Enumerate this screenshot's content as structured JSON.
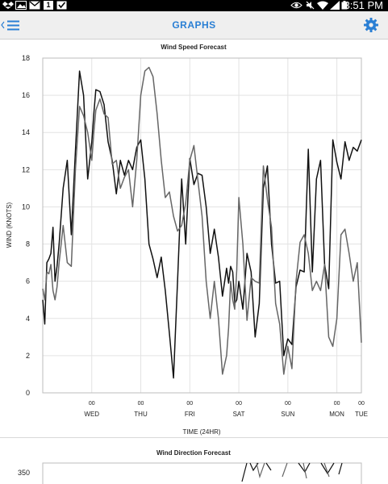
{
  "status_bar": {
    "time": "3:51 PM",
    "icons": [
      "dropbox-icon",
      "gallery-icon",
      "gmail-icon",
      "calendar-icon",
      "checkbox-icon",
      "eye-icon",
      "silent-icon",
      "wifi-icon",
      "signal-icon",
      "battery-icon"
    ],
    "calendar_day": "1"
  },
  "app_bar": {
    "title": "GRAPHS",
    "accent": "#2a7fd4"
  },
  "chart_data": [
    {
      "type": "line",
      "title": "Wind Speed Forecast",
      "ylabel": "WIND (KNOTS)",
      "xlabel": "TIME (24HR)",
      "ylim": [
        0,
        18
      ],
      "yticks": [
        0,
        2,
        4,
        6,
        8,
        10,
        12,
        14,
        16,
        18
      ],
      "xlim": [
        0,
        156
      ],
      "xticks": [
        {
          "x": 24,
          "label": "00",
          "day": "WED"
        },
        {
          "x": 48,
          "label": "00",
          "day": "THU"
        },
        {
          "x": 72,
          "label": "00",
          "day": "FRI"
        },
        {
          "x": 96,
          "label": "00",
          "day": "SAT"
        },
        {
          "x": 120,
          "label": "00",
          "day": "SUN"
        },
        {
          "x": 144,
          "label": "00",
          "day": "MON"
        },
        {
          "x": 168,
          "label": "00",
          "day": "TUE"
        }
      ],
      "grid": true,
      "series": [
        {
          "color": "#111111",
          "x": [
            0,
            1,
            2,
            3,
            4,
            5,
            6,
            7,
            8,
            10,
            12,
            14,
            16,
            18,
            20,
            22,
            24,
            25,
            26,
            28,
            30,
            32,
            34,
            36,
            38,
            40,
            42,
            44,
            46,
            48,
            50,
            52,
            54,
            56,
            58,
            60,
            62,
            64,
            66,
            68,
            70,
            72,
            74,
            76,
            78,
            80,
            82,
            84,
            86,
            88,
            90,
            91,
            92,
            93,
            94,
            95,
            96,
            98,
            100,
            102,
            104,
            106,
            108,
            110,
            112,
            114,
            116,
            118,
            120,
            122,
            124,
            126,
            128,
            130,
            132,
            134,
            136,
            138,
            140,
            142,
            144,
            146,
            148,
            150,
            152,
            154,
            156
          ],
          "y": [
            5,
            3.7,
            7,
            7.2,
            7.5,
            8.9,
            6,
            6.8,
            8,
            11,
            12.5,
            8.5,
            13,
            17.3,
            16,
            11.5,
            13.5,
            15,
            16.3,
            16.2,
            15.5,
            13.5,
            12.5,
            10.7,
            12.5,
            11.7,
            12.5,
            12,
            13.2,
            13.6,
            11.5,
            8,
            7.2,
            6.2,
            7.3,
            5.5,
            3.2,
            0.8,
            6,
            11.5,
            8,
            12.6,
            11.2,
            11.8,
            11.7,
            10,
            7.5,
            8.8,
            7.3,
            5.2,
            6.7,
            5.9,
            6.8,
            6.5,
            4.8,
            5,
            6,
            4.5,
            7.5,
            6.5,
            3,
            4.8,
            11,
            12.2,
            8,
            5.9,
            6,
            2,
            2.9,
            2.6,
            5.7,
            6.6,
            6.5,
            13.1,
            6.5,
            11.5,
            12.5,
            6.9,
            5.6,
            13.6,
            12.4,
            11.5,
            13.5,
            12.5,
            13.2,
            13,
            13.6
          ]
        },
        {
          "color": "#666666",
          "x": [
            0,
            1,
            2,
            3,
            4,
            5,
            6,
            7,
            8,
            10,
            12,
            14,
            16,
            18,
            20,
            22,
            24,
            25,
            26,
            28,
            30,
            32,
            34,
            36,
            38,
            40,
            42,
            44,
            46,
            48,
            50,
            52,
            54,
            56,
            58,
            60,
            62,
            64,
            66,
            68,
            70,
            72,
            74,
            76,
            78,
            80,
            82,
            84,
            86,
            88,
            90,
            91,
            92,
            93,
            94,
            95,
            96,
            98,
            100,
            102,
            104,
            106,
            108,
            110,
            112,
            114,
            116,
            118,
            120,
            122,
            124,
            126,
            128,
            130,
            132,
            134,
            136,
            138,
            140,
            142,
            144,
            146,
            148,
            150,
            152,
            154,
            156
          ],
          "y": [
            5.6,
            5,
            6.5,
            6.4,
            6.9,
            5.5,
            5,
            5.7,
            7,
            9,
            7,
            6.8,
            12,
            15.4,
            14.9,
            14,
            12.5,
            14,
            15.2,
            15.8,
            15,
            14.8,
            12.3,
            12.5,
            11,
            11.6,
            12,
            10,
            12.5,
            16,
            17.3,
            17.5,
            17,
            15,
            12.5,
            10.5,
            10.8,
            9.5,
            8.7,
            9,
            10.2,
            12.5,
            13.3,
            11.4,
            9.5,
            6,
            4,
            6,
            4,
            1,
            2,
            3.5,
            6,
            5,
            4.5,
            6.6,
            10.5,
            8,
            3.9,
            6.2,
            6,
            5.9,
            12.2,
            10.4,
            8.9,
            4.8,
            3.7,
            1,
            2.5,
            1.3,
            6,
            8.1,
            8.5,
            7.5,
            5.5,
            6,
            5.5,
            6.9,
            3,
            2.5,
            4,
            8.5,
            8.8,
            7.5,
            6,
            7,
            2.7
          ]
        }
      ]
    },
    {
      "type": "line",
      "title": "Wind Direction Forecast",
      "yticks_visible": [
        350
      ],
      "series": []
    }
  ]
}
